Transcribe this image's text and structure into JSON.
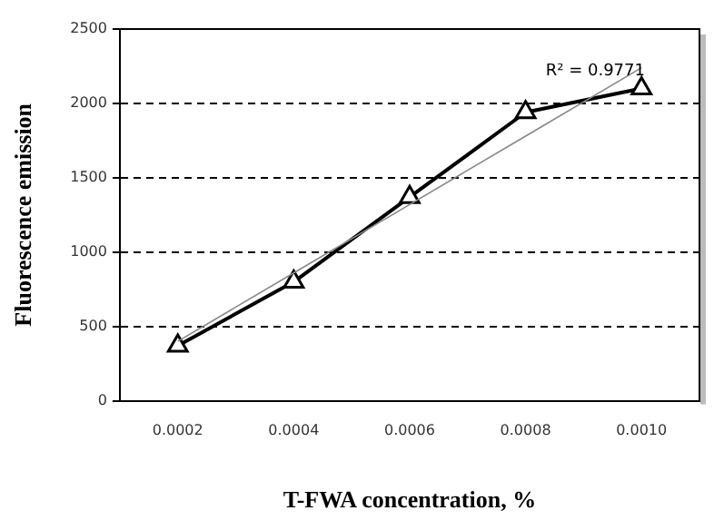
{
  "chart_data": {
    "type": "line",
    "xlabel": "T-FWA concentration, %",
    "ylabel": "Fluorescence emission",
    "categories": [
      "0.0002",
      "0.0004",
      "0.0006",
      "0.0008",
      "0.0010"
    ],
    "series": [
      {
        "color": "#000000",
        "marker": "triangle",
        "values": [
          370,
          800,
          1370,
          1940,
          2100
        ]
      },
      {
        "color": "#888888",
        "marker": "none",
        "values": [
          400,
          860,
          1320,
          1780,
          2240
        ]
      }
    ],
    "ylim": [
      0,
      2500
    ],
    "yticks": [
      0,
      500,
      1000,
      1500,
      2000,
      2500
    ],
    "grid": "y",
    "legend": false,
    "annotations": [
      "R² = 0.9771"
    ]
  }
}
